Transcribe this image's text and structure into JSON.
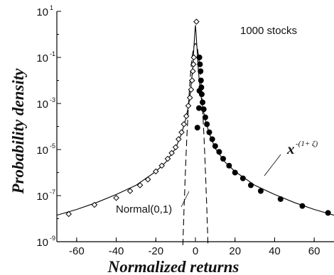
{
  "chart_data": {
    "type": "scatter",
    "xlabel": "Normalized returns",
    "ylabel": "Probability density",
    "xlim": [
      -70,
      70
    ],
    "ylim_log10": [
      -9,
      1
    ],
    "y_scale": "log",
    "x_ticks": [
      -60,
      -40,
      -20,
      0,
      20,
      40,
      60
    ],
    "x_tick_labels": [
      "-60",
      "-40",
      "-20",
      "0",
      "20",
      "40",
      "60"
    ],
    "y_ticks": [
      {
        "base": "10",
        "exp": "1",
        "value": 1
      },
      {
        "base": "10",
        "exp": "-1",
        "value": -1
      },
      {
        "base": "10",
        "exp": "-3",
        "value": -3
      },
      {
        "base": "10",
        "exp": "-5",
        "value": -5
      },
      {
        "base": "10",
        "exp": "-7",
        "value": -7
      },
      {
        "base": "10",
        "exp": "-9",
        "value": -9
      }
    ],
    "grid": false,
    "legend": "1000 stocks",
    "annotations": {
      "normal": "Normal(0,1)",
      "power_base": "x",
      "power_exp": "-(1+ ζ)"
    },
    "series": [
      {
        "marker": "open-diamond",
        "points": [
          [
            -64,
            -7.8
          ],
          [
            -51,
            -7.4
          ],
          [
            -40,
            -7.1
          ],
          [
            -33,
            -6.8
          ],
          [
            -28,
            -6.55
          ],
          [
            -24,
            -6.3
          ],
          [
            -20,
            -5.95
          ],
          [
            -17,
            -5.7
          ],
          [
            -14,
            -5.4
          ],
          [
            -12,
            -5.15
          ],
          [
            -10,
            -4.9
          ],
          [
            -8.5,
            -4.55
          ],
          [
            -7,
            -4.25
          ],
          [
            -5.8,
            -3.9
          ],
          [
            -4.6,
            -3.55
          ],
          [
            -3.6,
            -3.1
          ],
          [
            -2.8,
            -2.75
          ],
          [
            -2.2,
            -2.4
          ],
          [
            -1.7,
            -2.0
          ],
          [
            -1.3,
            -1.6
          ],
          [
            -1.0,
            -1.3
          ],
          [
            -0.8,
            -1.0
          ],
          [
            0.5,
            0.55
          ]
        ]
      },
      {
        "marker": "filled-circle",
        "points": [
          [
            2.0,
            -1.0
          ],
          [
            2.3,
            -1.3
          ],
          [
            2.6,
            -1.6
          ],
          [
            2.8,
            -2.0
          ],
          [
            2.0,
            -2.45
          ],
          [
            3.0,
            -2.3
          ],
          [
            1.8,
            -3.2
          ],
          [
            3.2,
            -2.6
          ],
          [
            3.6,
            -2.95
          ],
          [
            4.2,
            -3.25
          ],
          [
            1.0,
            -4.05
          ],
          [
            5.0,
            -3.6
          ],
          [
            5.8,
            -3.9
          ],
          [
            7.0,
            -4.25
          ],
          [
            8.5,
            -4.55
          ],
          [
            10,
            -4.85
          ],
          [
            12,
            -5.1
          ],
          [
            14,
            -5.4
          ],
          [
            17,
            -5.7
          ],
          [
            20,
            -6.0
          ],
          [
            24,
            -6.25
          ],
          [
            28,
            -6.55
          ],
          [
            33,
            -6.8
          ],
          [
            43,
            -7.15
          ],
          [
            54,
            -7.45
          ],
          [
            67,
            -7.75
          ]
        ]
      }
    ],
    "fit_curve": [
      [
        -70,
        -7.85
      ],
      [
        -60,
        -7.6
      ],
      [
        -50,
        -7.3
      ],
      [
        -40,
        -6.95
      ],
      [
        -30,
        -6.55
      ],
      [
        -20,
        -5.95
      ],
      [
        -15,
        -5.55
      ],
      [
        -10,
        -4.95
      ],
      [
        -7,
        -4.3
      ],
      [
        -5,
        -3.7
      ],
      [
        -3.5,
        -3.1
      ],
      [
        -2.5,
        -2.5
      ],
      [
        -1.5,
        -1.6
      ],
      [
        -0.8,
        -0.6
      ],
      [
        -0.3,
        0.1
      ],
      [
        0,
        0.4
      ],
      [
        0.3,
        0.1
      ],
      [
        0.8,
        -0.6
      ],
      [
        1.5,
        -1.6
      ],
      [
        2.5,
        -2.5
      ],
      [
        3.5,
        -3.1
      ],
      [
        5,
        -3.7
      ],
      [
        7,
        -4.3
      ],
      [
        10,
        -4.95
      ],
      [
        15,
        -5.55
      ],
      [
        20,
        -5.95
      ],
      [
        30,
        -6.55
      ],
      [
        40,
        -6.95
      ],
      [
        50,
        -7.3
      ],
      [
        60,
        -7.6
      ],
      [
        70,
        -7.85
      ]
    ],
    "normal_curve": {
      "mean": 0,
      "sd": 1,
      "style": "dashed"
    }
  }
}
